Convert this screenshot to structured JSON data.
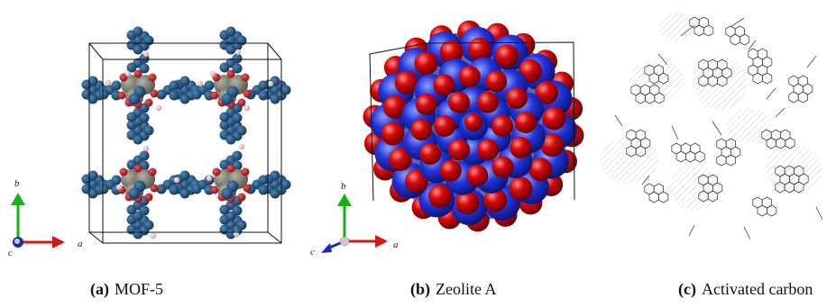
{
  "panels": [
    {
      "letter": "(a)",
      "name": "MOF-5",
      "axes": {
        "a": "a",
        "b": "b",
        "c": "c"
      }
    },
    {
      "letter": "(b)",
      "name": "Zeolite A",
      "axes": {
        "a": "a",
        "b": "b",
        "c": "c"
      }
    },
    {
      "letter": "(c)",
      "name": "Activated carbon"
    }
  ],
  "colors": {
    "mof_node": "#1f4e7a",
    "mof_metal": "#7d7d72",
    "mof_oxygen": "#c41a1a",
    "mof_hydrogen": "#e7b9b9",
    "zeolite_si": "#1a2ec8",
    "zeolite_o": "#cc0000",
    "carbon_line": "#444444",
    "axis_a": "#d01818",
    "axis_b": "#18b018",
    "axis_c": "#1a2ab8"
  }
}
